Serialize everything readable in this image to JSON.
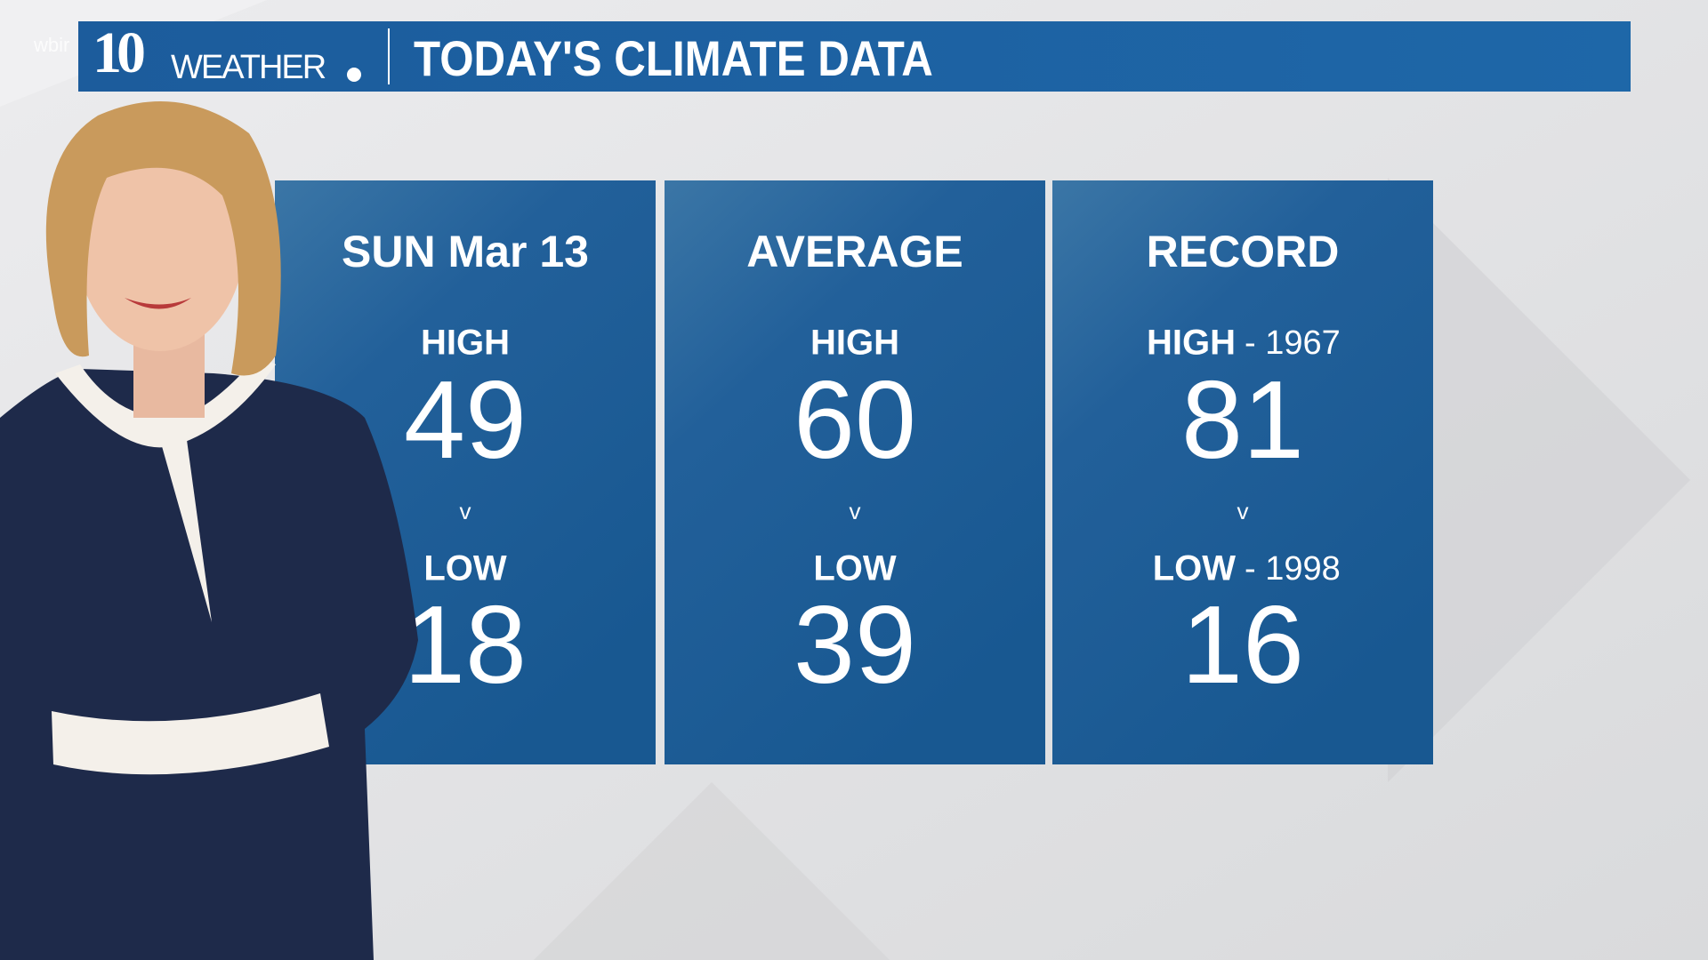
{
  "header": {
    "station": "wbir",
    "logo_number": "10",
    "logo_text": "WEATHER",
    "title": "TODAY'S CLIMATE DATA"
  },
  "panels": [
    {
      "heading": "SUN Mar 13",
      "high_label": "HIGH",
      "high": 49,
      "separator": "v",
      "low_label": "LOW",
      "low": 18
    },
    {
      "heading": "AVERAGE",
      "high_label": "HIGH",
      "high": 60,
      "separator": "v",
      "low_label": "LOW",
      "low": 39
    },
    {
      "heading": "RECORD",
      "high_label": "HIGH",
      "high_year": "- 1967",
      "high": 81,
      "separator": "v",
      "low_label": "LOW",
      "low_year": "- 1998",
      "low": 16
    }
  ]
}
